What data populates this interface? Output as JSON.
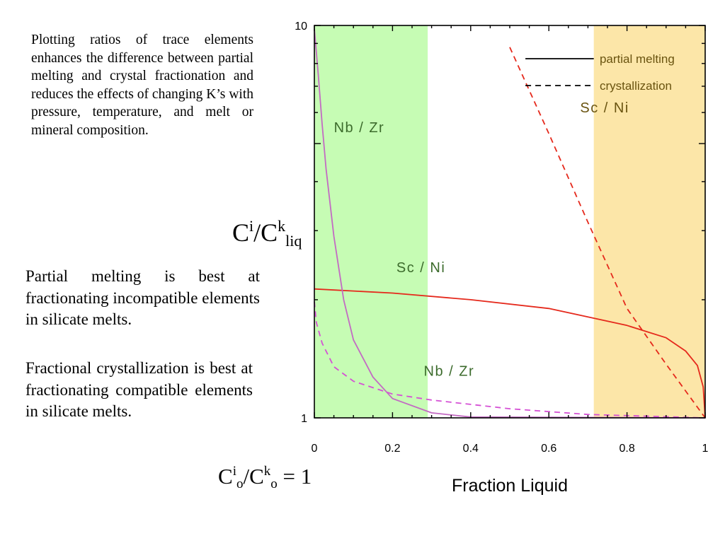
{
  "text_blocks": {
    "intro": "Plotting ratios of trace elements enhances the difference between partial melting and crystal fractionation and reduces the effects of changing K’s with pressure, temperature, and melt or mineral composition.",
    "partial_melting": "Partial melting is best at fractionating incompatible elements in silicate melts.",
    "crystallization": "Fractional crystallization is best at fractionating compatible elements in silicate melts."
  },
  "y_label": {
    "base": "C",
    "sup1": "i",
    "slash": "/C",
    "sup2": "k",
    "sub": "liq"
  },
  "baseline_label": {
    "c1": "C",
    "sup1": "i",
    "sub1": "o",
    "slash": "/C",
    "sup2": "k",
    "sub2": "o",
    "rest": " = 1"
  },
  "chart_data": {
    "type": "line",
    "xlabel": "Fraction Liquid",
    "ylabel": "Ci/Ck liq",
    "x_range": [
      0,
      1
    ],
    "y_range": [
      1,
      10
    ],
    "y_scale": "log",
    "x_ticks": [
      "0",
      "0.2",
      "0.4",
      "0.6",
      "0.8",
      "1"
    ],
    "y_ticks": [
      "1",
      "10"
    ],
    "shaded_regions": [
      {
        "x": [
          0,
          0.29
        ],
        "color": "#c6fcb4"
      },
      {
        "x": [
          0.715,
          1.0
        ],
        "color": "#fce6a8"
      }
    ],
    "legend": {
      "position": "top-right",
      "entries": [
        {
          "label": "partial melting",
          "style": "solid"
        },
        {
          "label": "crystallization",
          "style": "dashed"
        }
      ]
    },
    "series": [
      {
        "style": "solid",
        "color": "#e5291c",
        "points": [
          [
            0,
            2.13
          ],
          [
            0.2,
            2.08
          ],
          [
            0.4,
            2.0
          ],
          [
            0.6,
            1.9
          ],
          [
            0.8,
            1.72
          ],
          [
            0.9,
            1.6
          ],
          [
            0.95,
            1.48
          ],
          [
            0.98,
            1.36
          ],
          [
            0.995,
            1.2
          ],
          [
            1.0,
            1.0
          ]
        ]
      },
      {
        "style": "solid",
        "color": "#c36ac3",
        "points": [
          [
            0,
            9.8
          ],
          [
            0.01,
            7.5
          ],
          [
            0.02,
            5.6
          ],
          [
            0.03,
            4.3
          ],
          [
            0.05,
            2.9
          ],
          [
            0.075,
            2.0
          ],
          [
            0.1,
            1.58
          ],
          [
            0.15,
            1.27
          ],
          [
            0.2,
            1.12
          ],
          [
            0.3,
            1.03
          ],
          [
            0.4,
            1.005
          ],
          [
            1.0,
            1.0
          ]
        ]
      },
      {
        "style": "dashed",
        "color": "#e5291c",
        "points": [
          [
            0.5,
            8.8
          ],
          [
            0.6,
            5.3
          ],
          [
            0.7,
            3.15
          ],
          [
            0.8,
            1.9
          ],
          [
            0.9,
            1.37
          ],
          [
            1.0,
            1.0
          ]
        ]
      },
      {
        "style": "dashed",
        "color": "#d550d5",
        "points": [
          [
            0,
            1.98
          ],
          [
            0.005,
            1.75
          ],
          [
            0.02,
            1.55
          ],
          [
            0.05,
            1.35
          ],
          [
            0.1,
            1.24
          ],
          [
            0.2,
            1.15
          ],
          [
            0.3,
            1.11
          ],
          [
            0.5,
            1.055
          ],
          [
            0.7,
            1.02
          ],
          [
            1.0,
            1.0
          ]
        ]
      }
    ],
    "annotations": [
      {
        "text": "Nb / Zr",
        "x": 0.05,
        "y": 5.35,
        "color": "#3c6b2c"
      },
      {
        "text": "Sc / Ni",
        "x": 0.21,
        "y": 2.35,
        "color": "#3c6b2c"
      },
      {
        "text": "Nb / Zr",
        "x": 0.28,
        "y": 1.28,
        "color": "#3c6b2c"
      },
      {
        "text": "Sc / Ni",
        "x": 0.68,
        "y": 6.0,
        "color": "#6a5410"
      }
    ]
  }
}
